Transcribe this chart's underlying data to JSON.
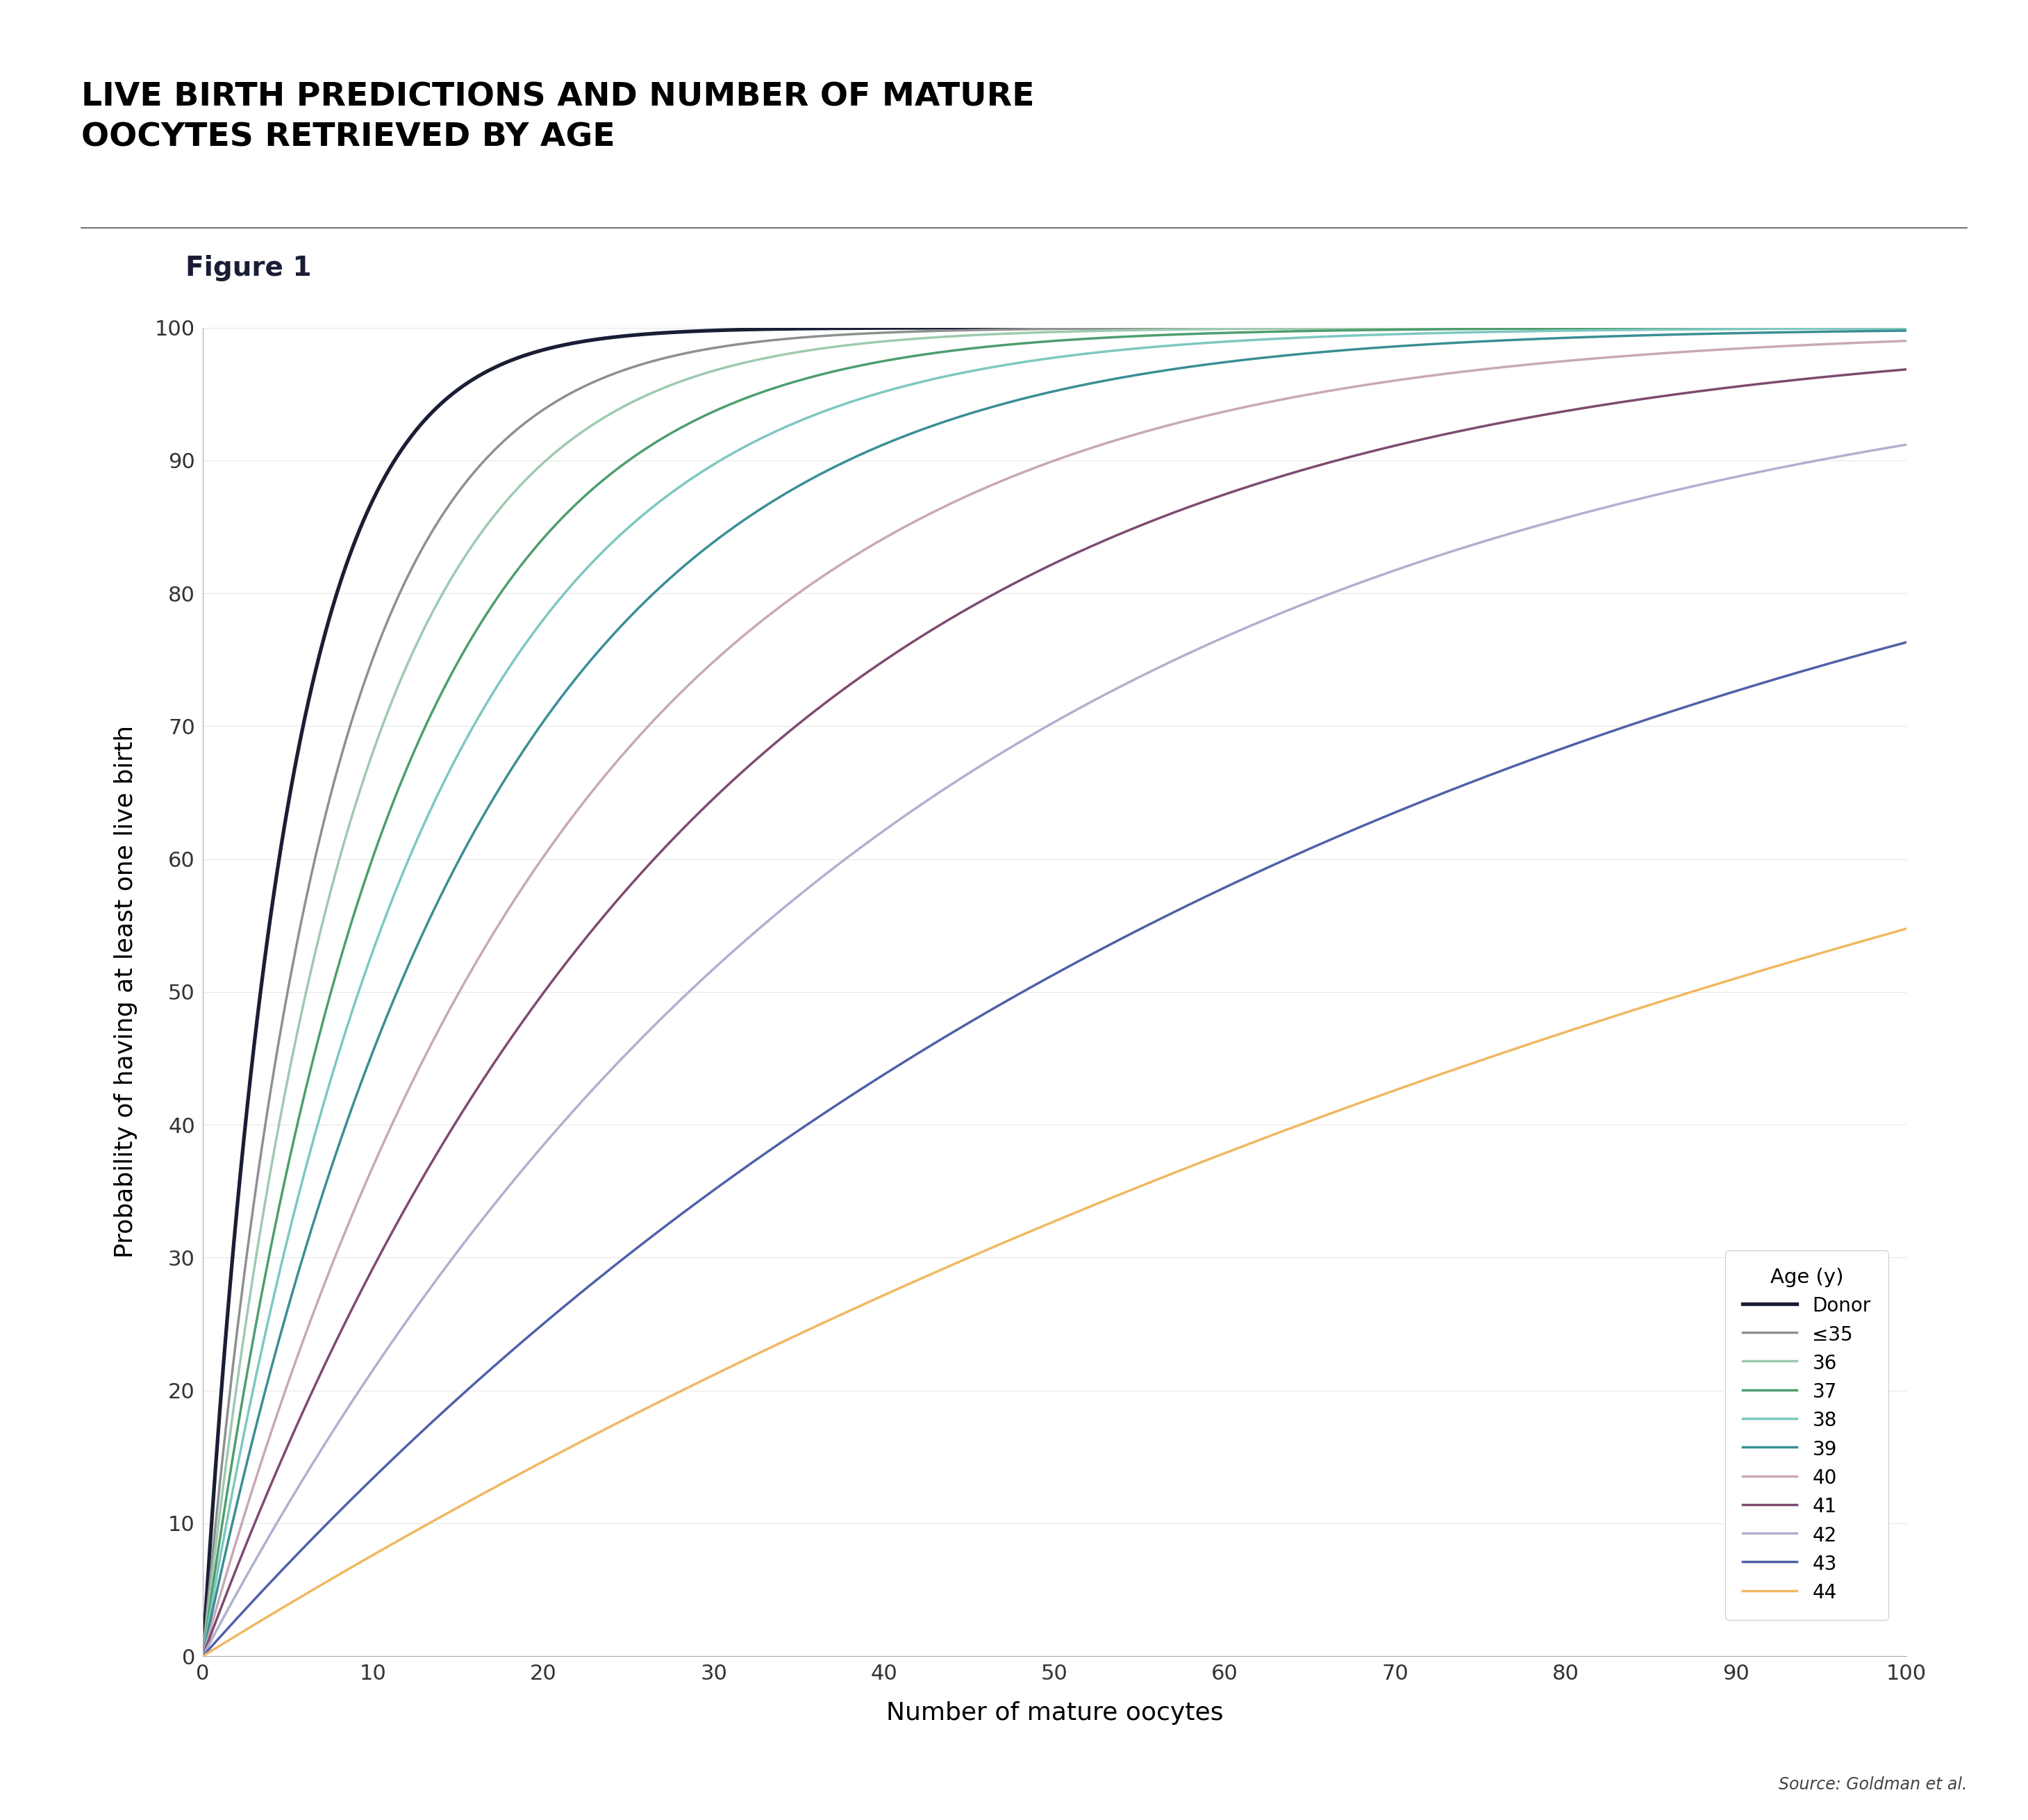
{
  "title_line1": "LIVE BIRTH PREDICTIONS AND NUMBER OF MATURE",
  "title_line2": "OOCYTES RETRIEVED BY AGE",
  "figure_label": "Figure 1",
  "xlabel": "Number of mature oocytes",
  "ylabel": "Probability of having at least one live birth",
  "source_text": "Source: Goldman et al.",
  "xlim": [
    0,
    100
  ],
  "ylim": [
    0,
    100
  ],
  "xticks": [
    0,
    10,
    20,
    30,
    40,
    50,
    60,
    70,
    80,
    90,
    100
  ],
  "yticks": [
    0,
    10,
    20,
    30,
    40,
    50,
    60,
    70,
    80,
    90,
    100
  ],
  "series": [
    {
      "label": "Donor",
      "p_per_egg": 0.185,
      "color": "#1a1e35",
      "lw": 3.8
    },
    {
      "label": "≤35",
      "p_per_egg": 0.13,
      "color": "#8e9090",
      "lw": 2.5
    },
    {
      "label": "36",
      "p_per_egg": 0.108,
      "color": "#9ecaaf",
      "lw": 2.5
    },
    {
      "label": "37",
      "p_per_egg": 0.088,
      "color": "#4d9e6e",
      "lw": 2.5
    },
    {
      "label": "38",
      "p_per_egg": 0.073,
      "color": "#7dc8c0",
      "lw": 2.5
    },
    {
      "label": "39",
      "p_per_egg": 0.059,
      "color": "#3a8e95",
      "lw": 2.5
    },
    {
      "label": "40",
      "p_per_egg": 0.045,
      "color": "#c8a8b8",
      "lw": 2.5
    },
    {
      "label": "41",
      "p_per_egg": 0.034,
      "color": "#7e4a70",
      "lw": 2.5
    },
    {
      "label": "42",
      "p_per_egg": 0.024,
      "color": "#b0b0d0",
      "lw": 2.5
    },
    {
      "label": "43",
      "p_per_egg": 0.0143,
      "color": "#5060a8",
      "lw": 2.5
    },
    {
      "label": "44",
      "p_per_egg": 0.0079,
      "color": "#f0b860",
      "lw": 2.5
    }
  ]
}
